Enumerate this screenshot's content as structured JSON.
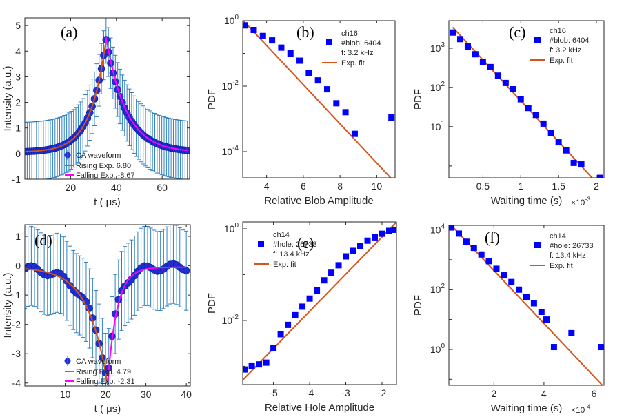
{
  "colors": {
    "axis": "#262626",
    "marker": "#0000ff",
    "fit": "#d95319",
    "fall": "#ff00ff",
    "errbar": "#2f7fbf",
    "ca": "#1f2fd0"
  },
  "chart_data": [
    {
      "id": "a",
      "type": "line",
      "panel_label": "(a)",
      "xlabel": "t ( μs)",
      "ylabel": "Intensity (a.u.)",
      "xlim": [
        0,
        72
      ],
      "ylim": [
        -1,
        5.3
      ],
      "xticks": [
        20,
        40,
        60
      ],
      "yticks": [
        -1,
        0,
        1,
        2,
        3,
        4,
        5
      ],
      "peak_t": 35.5,
      "base": 0.05,
      "legend": [
        "CA waveform",
        "Rising Exp. 6.80",
        "Falling Exp. -8.67"
      ],
      "series": [
        {
          "name": "CA waveform",
          "amp": 4.4,
          "tau_rise": 6.8,
          "tau_fall": 8.67,
          "t_range": [
            0,
            71
          ],
          "n": 70,
          "err": 1.15
        },
        {
          "name": "Rising Exp. 6.80",
          "amp": 4.4,
          "tau": 6.8,
          "t_range": [
            0,
            35.5
          ]
        },
        {
          "name": "Falling Exp. -8.67",
          "amp": 4.5,
          "tau": 8.67,
          "t_range": [
            35.5,
            71
          ]
        }
      ]
    },
    {
      "id": "b",
      "type": "scatter",
      "panel_label": "(b)",
      "xlabel": "Relative Blob Amplitude",
      "ylabel": "PDF",
      "yscale": "log",
      "xlim": [
        2.7,
        11
      ],
      "ylim_log10": [
        -4.8,
        0
      ],
      "xticks": [
        4,
        6,
        8,
        10
      ],
      "yticks_exp": [
        -4,
        -2,
        0
      ],
      "legend": [
        "ch16",
        "#blob: 6404",
        "f: 3.2 kHz"
      ],
      "fit_label": "Exp. fit",
      "x": [
        2.8,
        3.3,
        3.8,
        4.3,
        4.8,
        5.3,
        5.8,
        6.3,
        6.8,
        7.3,
        7.8,
        8.3,
        8.8,
        10.8
      ],
      "y": [
        0.72,
        0.52,
        0.34,
        0.25,
        0.15,
        0.1,
        0.06,
        0.025,
        0.015,
        0.008,
        0.003,
        0.0016,
        0.00035,
        0.0011
      ],
      "fit": {
        "x": [
          2.7,
          11
        ],
        "y": [
          1.05,
          1.13e-05
        ]
      }
    },
    {
      "id": "c",
      "type": "scatter",
      "panel_label": "(c)",
      "xlabel": "Waiting time (s)",
      "x_multiplier": "×10",
      "x_multiplier_exp": "-3",
      "ylabel": "PDF",
      "yscale": "log",
      "xlim": [
        0.05,
        2.1
      ],
      "ylim_log10": [
        -0.3,
        3.7
      ],
      "xticks": [
        0.5,
        1,
        1.5,
        2
      ],
      "yticks_exp": [
        1,
        2,
        3
      ],
      "legend": [
        "ch16",
        "#blob: 6404",
        "f: 3.2 kHz"
      ],
      "fit_label": "Exp. fit",
      "x": [
        0.1,
        0.2,
        0.3,
        0.4,
        0.5,
        0.6,
        0.7,
        0.8,
        0.9,
        1.0,
        1.1,
        1.2,
        1.3,
        1.4,
        1.5,
        1.6,
        1.7,
        1.8,
        2.05
      ],
      "y": [
        2500,
        1700,
        1100,
        700,
        450,
        330,
        200,
        130,
        90,
        50,
        30,
        20,
        12,
        7,
        4,
        2.5,
        1.2,
        1.1,
        0.5
      ],
      "fit": {
        "x": [
          0.1,
          2.05
        ],
        "y": [
          3400,
          0.3
        ]
      }
    },
    {
      "id": "d",
      "type": "line",
      "panel_label": "(d)",
      "xlabel": "t ( μs)",
      "ylabel": "Intensity (a.u.)",
      "xlim": [
        0,
        41
      ],
      "ylim": [
        -4.1,
        1.4
      ],
      "xticks": [
        10,
        20,
        30,
        40
      ],
      "yticks": [
        -4,
        -3,
        -2,
        -1,
        0,
        1
      ],
      "peak_t": 20.5,
      "base": -0.05,
      "legend": [
        "CA waveform",
        "Rising Exp. 4.79",
        "Falling Exp. -2.31"
      ],
      "series": [
        {
          "name": "CA waveform",
          "amp": -3.9,
          "tau_rise": 4.79,
          "tau_fall": 2.31,
          "t_range": [
            0,
            40
          ],
          "n": 50,
          "err": 1.35
        },
        {
          "name": "Rising Exp. 4.79",
          "amp": -4.0,
          "tau": 4.79,
          "t_range": [
            0,
            20.5
          ]
        },
        {
          "name": "Falling Exp. -2.31",
          "amp": -4.0,
          "tau": 2.31,
          "t_range": [
            20.5,
            40
          ]
        }
      ]
    },
    {
      "id": "e",
      "type": "scatter",
      "panel_label": "(e)",
      "xlabel": "Relative Hole Amplitude",
      "ylabel": "PDF",
      "yscale": "log",
      "xlim": [
        -5.85,
        -1.6
      ],
      "ylim_log10": [
        -3.4,
        0.15
      ],
      "xticks": [
        -5,
        -4,
        -3,
        -2
      ],
      "yticks_exp": [
        -2,
        0
      ],
      "legend": [
        "ch14",
        "#hole: 26733",
        "f: 13.4 kHz"
      ],
      "fit_label": "Exp. fit",
      "x": [
        -5.8,
        -5.6,
        -5.4,
        -5.2,
        -5.0,
        -4.8,
        -4.6,
        -4.4,
        -4.2,
        -4.0,
        -3.8,
        -3.6,
        -3.4,
        -3.2,
        -3.0,
        -2.8,
        -2.6,
        -2.4,
        -2.2,
        -2.0,
        -1.8,
        -1.65
      ],
      "y": [
        0.00085,
        0.001,
        0.0011,
        0.0012,
        0.0025,
        0.005,
        0.008,
        0.013,
        0.02,
        0.03,
        0.045,
        0.075,
        0.11,
        0.16,
        0.25,
        0.33,
        0.42,
        0.55,
        0.65,
        0.78,
        0.9,
        0.95
      ],
      "fit": {
        "x": [
          -5.85,
          -1.6
        ],
        "y": [
          0.0005,
          1.4
        ]
      }
    },
    {
      "id": "f",
      "type": "scatter",
      "panel_label": "(f)",
      "xlabel": "Waiting time (s)",
      "x_multiplier": "×10",
      "x_multiplier_exp": "-4",
      "ylabel": "PDF",
      "yscale": "log",
      "xlim": [
        0.2,
        6.4
      ],
      "ylim_log10": [
        -1.2,
        4.15
      ],
      "xticks": [
        2,
        4,
        6
      ],
      "yticks_exp": [
        0,
        2,
        4
      ],
      "legend": [
        "ch14",
        "#hole: 26733",
        "f: 13.4 kHz"
      ],
      "fit_label": "Exp. fit",
      "x": [
        0.3,
        0.6,
        0.9,
        1.2,
        1.5,
        1.8,
        2.1,
        2.4,
        2.7,
        3.0,
        3.3,
        3.6,
        3.9,
        4.1,
        4.4,
        5.1,
        6.3
      ],
      "y": [
        12000,
        7500,
        4000,
        2500,
        1500,
        900,
        500,
        300,
        180,
        100,
        55,
        35,
        18,
        10,
        1.2,
        3.5,
        1.2
      ],
      "fit": {
        "x": [
          0.3,
          6.4
        ],
        "y": [
          14000,
          0.055
        ]
      }
    }
  ]
}
